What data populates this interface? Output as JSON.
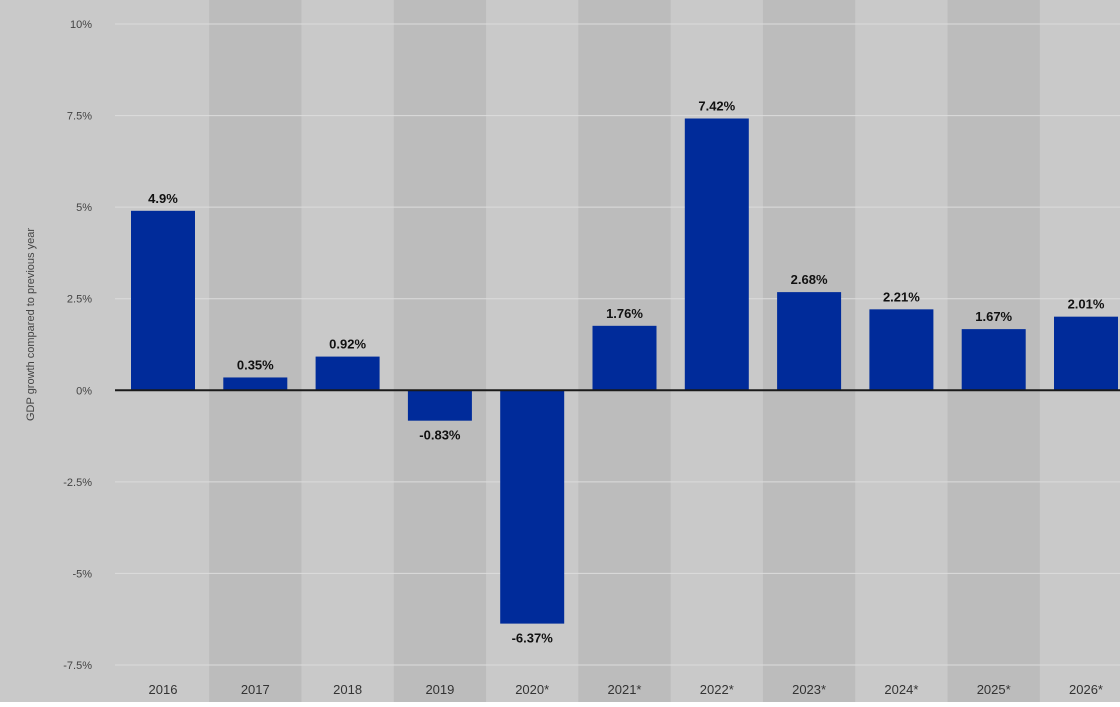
{
  "chart_data": {
    "type": "bar",
    "title": "",
    "xlabel": "",
    "ylabel": "GDP growth compared to previous year",
    "categories": [
      "2016",
      "2017",
      "2018",
      "2019",
      "2020*",
      "2021*",
      "2022*",
      "2023*",
      "2024*",
      "2025*",
      "2026*"
    ],
    "values": [
      4.9,
      0.35,
      0.92,
      -0.83,
      -6.37,
      1.76,
      7.42,
      2.68,
      2.21,
      1.67,
      2.01
    ],
    "value_labels": [
      "4.9%",
      "0.35%",
      "0.92%",
      "-0.83%",
      "-6.37%",
      "1.76%",
      "7.42%",
      "2.68%",
      "2.21%",
      "1.67%",
      "2.01%"
    ],
    "ylim": [
      -7.5,
      10
    ],
    "yticks": [
      10,
      7.5,
      5,
      2.5,
      0,
      -2.5,
      -5,
      -7.5
    ],
    "ytick_labels": [
      "10%",
      "7.5%",
      "5%",
      "2.5%",
      "0%",
      "-2.5%",
      "-5%",
      "-7.5%"
    ],
    "grid": true,
    "legend": "none",
    "colors": {
      "bar": "#002b9a",
      "plot_background": "#c9c9c9",
      "band": "#bcbcbc",
      "gridline": "#dcdcdc",
      "zero_line": "#1a1a1a",
      "page_background": "#ffffff"
    }
  }
}
